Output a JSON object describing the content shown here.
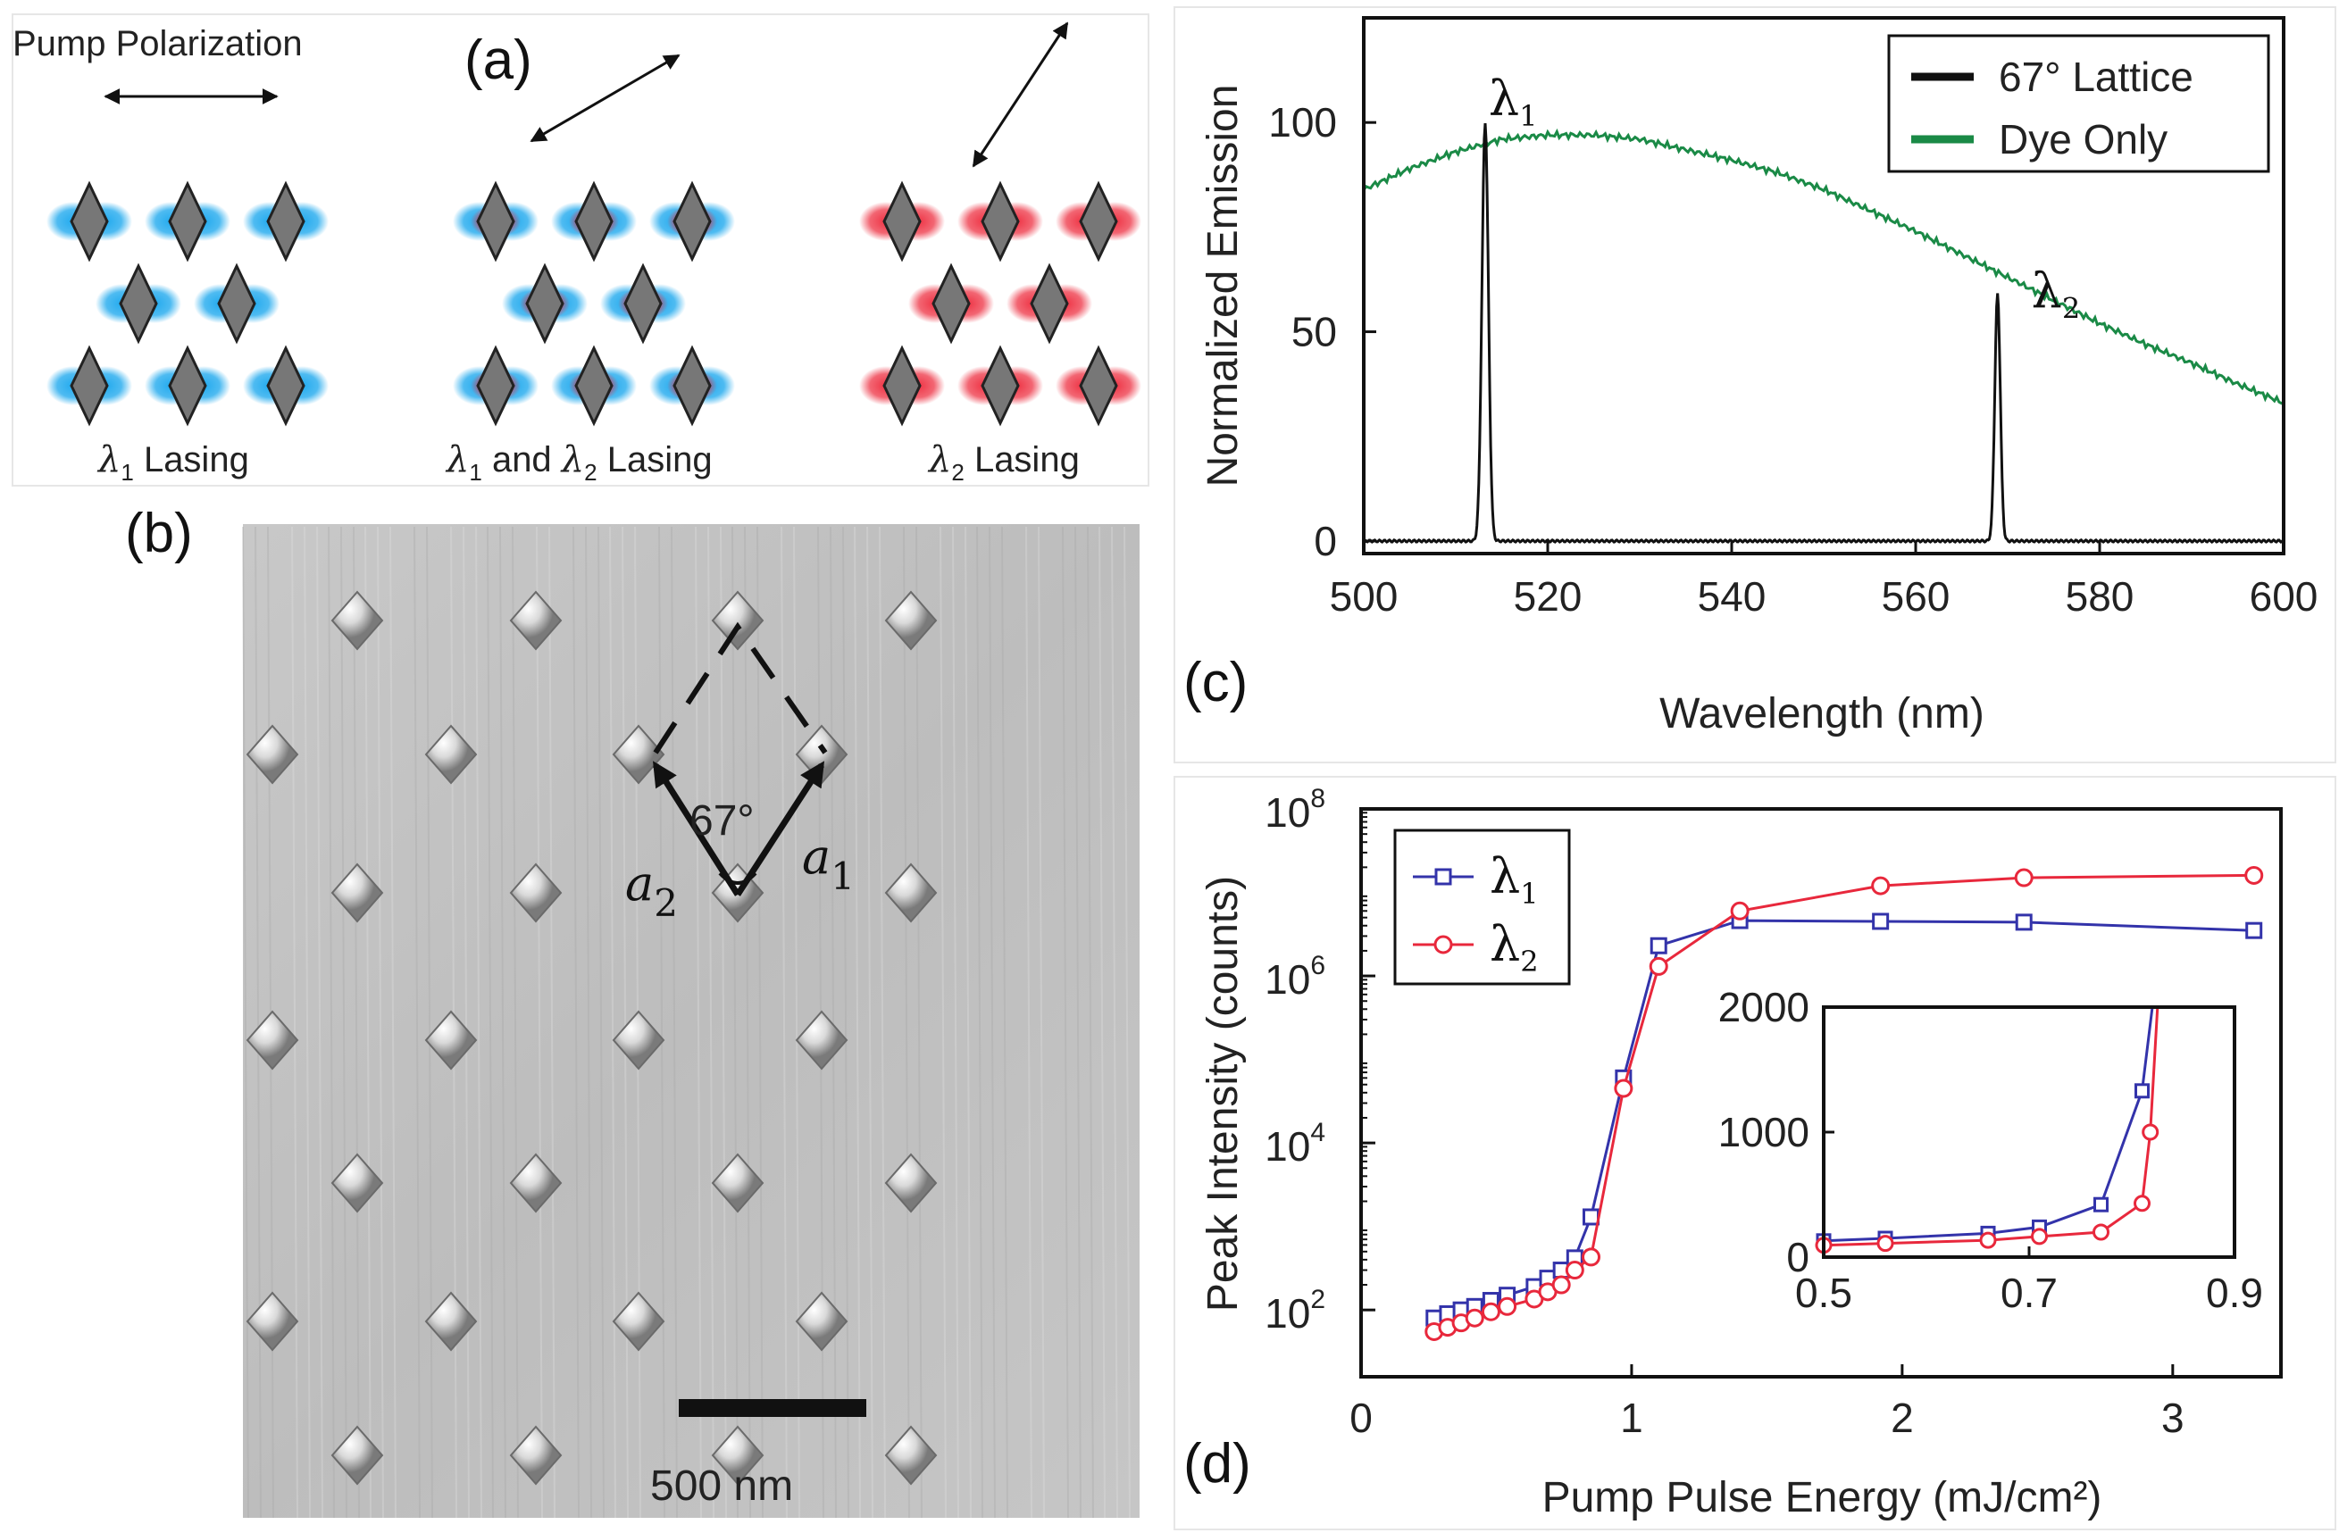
{
  "panel_a": {
    "label": "(a)",
    "pump_label": "Pump Polarization",
    "captions": [
      "λ1 Lasing",
      "λ1 and λ2 Lasing",
      "λ2 Lasing"
    ]
  },
  "panel_b": {
    "label": "(b)",
    "angle": "67°",
    "vec_a1": "a",
    "vec_a1_sub": "1",
    "vec_a2": "a",
    "vec_a2_sub": "2",
    "scale_bar": "500 nm"
  },
  "colors": {
    "black": "#111111",
    "green": "#1a8a46",
    "blue": "#3333aa",
    "red": "#e8283c",
    "cyan": "#22aaee",
    "pink": "#ee3344"
  },
  "chart_data": [
    {
      "id": "c",
      "panel_label": "(c)",
      "type": "line",
      "xlabel": "Wavelength (nm)",
      "ylabel": "Normalized Emission",
      "xlim": [
        500,
        600
      ],
      "ylim": [
        -3,
        125
      ],
      "xticks": [
        500,
        520,
        540,
        560,
        580,
        600
      ],
      "yticks": [
        0,
        50,
        100
      ],
      "legend": {
        "position": "top-right",
        "entries": [
          "67° Lattice",
          "Dye Only"
        ]
      },
      "annotations": [
        {
          "text": "λ",
          "sub": "1",
          "x": 513,
          "y": 106
        },
        {
          "text": "λ",
          "sub": "2",
          "x": 572,
          "y": 60
        }
      ],
      "series": [
        {
          "name": "67° Lattice",
          "color": "#111111",
          "type": "peaks",
          "baseline": 0,
          "peaks": [
            {
              "x": 513.2,
              "height": 100,
              "sigma": 0.35
            },
            {
              "x": 568.9,
              "height": 59,
              "sigma": 0.3
            }
          ]
        },
        {
          "name": "Dye Only",
          "color": "#1a8a46",
          "x": [
            500,
            505,
            510,
            515,
            520,
            525,
            530,
            535,
            540,
            545,
            550,
            555,
            560,
            565,
            570,
            575,
            580,
            585,
            590,
            595,
            600
          ],
          "y": [
            84,
            89,
            93,
            96,
            97,
            97,
            96,
            93.5,
            91,
            88,
            84,
            79,
            74,
            68.5,
            63,
            57.5,
            52,
            47,
            42.5,
            37.5,
            33
          ]
        }
      ]
    },
    {
      "id": "d",
      "panel_label": "(d)",
      "type": "line",
      "yscale": "log",
      "xlabel": "Pump Pulse Energy (mJ/cm²)",
      "ylabel": "Peak Intensity (counts)",
      "xlim": [
        0,
        3.4
      ],
      "ylim_log10": [
        1.2,
        8
      ],
      "xticks": [
        0,
        1,
        2,
        3
      ],
      "yticks": [
        {
          "base": "10",
          "exp": "2",
          "log": 2
        },
        {
          "base": "10",
          "exp": "4",
          "log": 4
        },
        {
          "base": "10",
          "exp": "6",
          "log": 6
        },
        {
          "base": "10",
          "exp": "8",
          "log": 8
        }
      ],
      "legend": {
        "position": "top-left",
        "entries": [
          "λ1",
          "λ2"
        ]
      },
      "series": [
        {
          "name": "λ1",
          "color": "#3333aa",
          "marker": "square",
          "x": [
            0.27,
            0.32,
            0.37,
            0.42,
            0.48,
            0.54,
            0.64,
            0.69,
            0.74,
            0.79,
            0.85,
            0.97,
            1.1,
            1.4,
            1.92,
            2.45,
            3.3
          ],
          "y": [
            80,
            90,
            100,
            110,
            130,
            150,
            190,
            240,
            300,
            420,
            1300,
            60000,
            2300000,
            4600000,
            4500000,
            4400000,
            3500000
          ]
        },
        {
          "name": "λ2",
          "color": "#e8283c",
          "marker": "circle",
          "x": [
            0.27,
            0.32,
            0.37,
            0.42,
            0.48,
            0.54,
            0.64,
            0.69,
            0.74,
            0.79,
            0.85,
            0.97,
            1.1,
            1.4,
            1.92,
            2.45,
            3.3
          ],
          "y": [
            55,
            62,
            70,
            80,
            95,
            110,
            135,
            165,
            200,
            300,
            430,
            45000,
            1300000,
            6000000,
            12000000,
            15000000,
            16000000
          ]
        }
      ],
      "inset": {
        "xlim": [
          0.5,
          0.9
        ],
        "ylim": [
          0,
          2000
        ],
        "xticks": [
          0.5,
          0.7,
          0.9
        ],
        "yticks": [
          0,
          1000,
          2000
        ],
        "series": [
          {
            "name": "λ1",
            "color": "#3333aa",
            "marker": "square",
            "x": [
              0.5,
              0.56,
              0.66,
              0.71,
              0.77,
              0.81,
              0.82
            ],
            "y": [
              130,
              150,
              190,
              240,
              420,
              1330,
              2000
            ]
          },
          {
            "name": "λ2",
            "color": "#e8283c",
            "marker": "circle",
            "x": [
              0.5,
              0.56,
              0.66,
              0.71,
              0.77,
              0.81,
              0.818,
              0.825
            ],
            "y": [
              95,
              110,
              135,
              165,
              200,
              430,
              1000,
              2000
            ]
          }
        ]
      }
    }
  ]
}
